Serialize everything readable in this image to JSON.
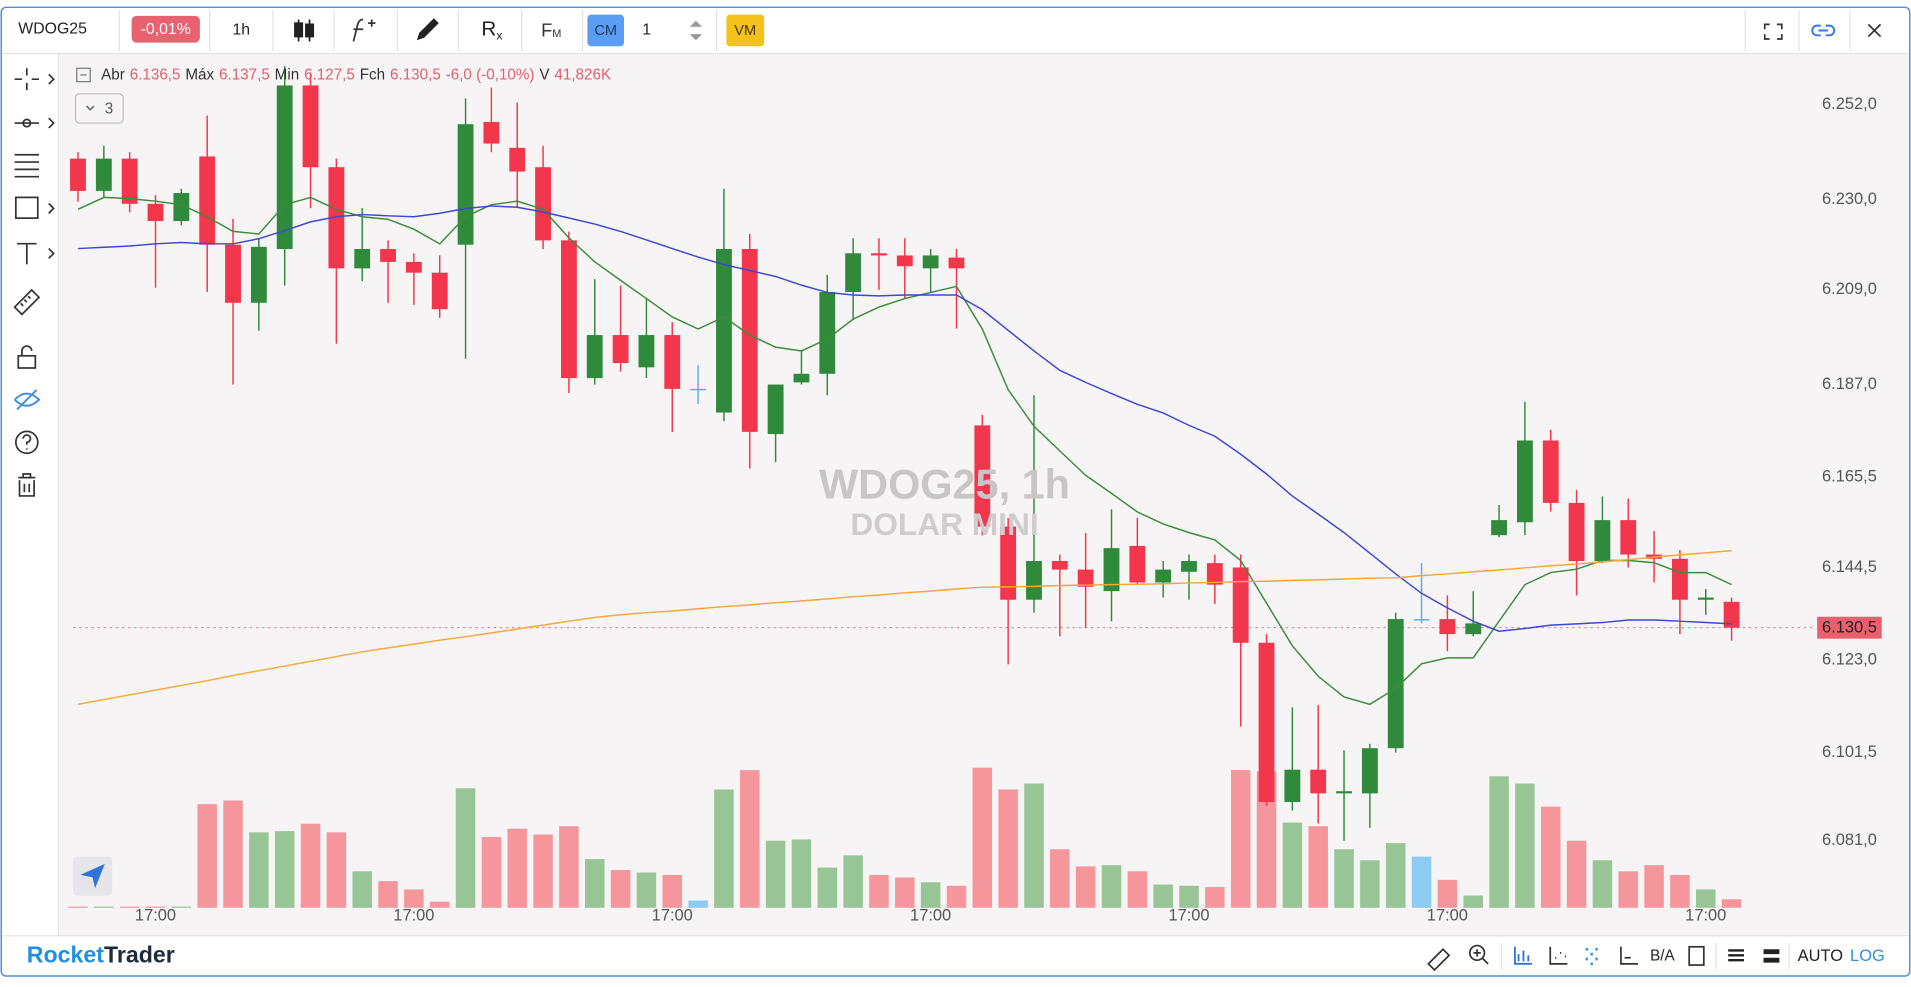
{
  "toolbar": {
    "symbol": "WDOG25",
    "change": "-0,01%",
    "timeframe": "1h",
    "indicator_r": "R",
    "indicator_x": "x",
    "indicator_f": "F",
    "indicator_m": "M",
    "cm": "CM",
    "count": "1",
    "vm": "VM"
  },
  "legend": {
    "open_label": "Abr",
    "open": "6.136,5",
    "high_label": "Máx",
    "high": "6.137,5",
    "low_label": "Min",
    "low": "6.127,5",
    "close_label": "Fch",
    "close": "6.130,5",
    "change": "-6,0 (-0,10%)",
    "volume_label": "V",
    "volume": "41,826K",
    "indicators": "3"
  },
  "watermark": {
    "title": "WDOG25, 1h",
    "subtitle": "DOLAR MINI"
  },
  "footer": {
    "brand_a": "Rocket",
    "brand_b": "Trader",
    "bid_ask": "B/A",
    "auto": "AUTO",
    "log": "LOG"
  },
  "chart_data": {
    "type": "candlestick",
    "categories": [
      null,
      null,
      null,
      "17:00",
      null,
      null,
      null,
      null,
      null,
      null,
      null,
      null,
      null,
      "17:00",
      null,
      null,
      null,
      null,
      null,
      null,
      null,
      null,
      null,
      "17:00",
      null,
      null,
      null,
      null,
      null,
      null,
      null,
      null,
      null,
      "17:00",
      null,
      null,
      null,
      null,
      null,
      null,
      null,
      null,
      null,
      "17:00",
      null,
      null,
      null,
      null,
      null,
      null,
      null,
      null,
      null,
      "17:00",
      null,
      null,
      null,
      null,
      null,
      null,
      null,
      null,
      null,
      "17:00",
      null
    ],
    "open": [
      6239.5,
      6232,
      6239.5,
      6229,
      6225,
      6240,
      6219.5,
      6206,
      6218.5,
      6256.5,
      6237.5,
      6214,
      6218.5,
      6215.5,
      6213,
      6219.5,
      6248,
      6242,
      6237.5,
      6220.5,
      6188.5,
      6198.5,
      6191,
      6198.5,
      6186,
      6180.5,
      6218.5,
      6175.5,
      6187.5,
      6189.5,
      6208.5,
      6217.5,
      6217,
      6214,
      6216.5,
      6177.5,
      6154,
      6137,
      6146,
      6144,
      6139,
      6149.5,
      6141,
      6143.5,
      6145.5,
      6144.5,
      6127,
      6090,
      6097.5,
      6092,
      6092,
      6102.5,
      6132.5,
      6132.5,
      6129,
      6152,
      6155,
      6174,
      6159.5,
      6146,
      6155.5,
      6147.5,
      6146.5,
      6137,
      6136.5
    ],
    "high": [
      6241,
      6242.5,
      6241,
      6231,
      6232.5,
      6249.5,
      6225.5,
      6221,
      6261,
      6259.5,
      6239.5,
      6228,
      6220.5,
      6217.5,
      6217,
      6253.5,
      6256,
      6252.5,
      6242.5,
      6222.5,
      6211.5,
      6210,
      6207,
      6201.5,
      6191.5,
      6232.5,
      6222,
      6187,
      6195,
      6212.5,
      6221,
      6221,
      6221,
      6218.5,
      6218.5,
      6180,
      6156,
      6184.5,
      6147.5,
      6152.5,
      6158,
      6156,
      6146,
      6147.5,
      6147.5,
      6147.5,
      6129,
      6112,
      6112.5,
      6102,
      6103.5,
      6134,
      6145.5,
      6138,
      6139,
      6159,
      6183,
      6176.5,
      6162.5,
      6161,
      6160.5,
      6153,
      6148.5,
      6139.5,
      6137.5
    ],
    "low": [
      6229.5,
      6230.5,
      6227,
      6209.5,
      6224,
      6208.5,
      6187,
      6199.5,
      6210,
      6228,
      6196.5,
      6211,
      6206,
      6205.5,
      6202.5,
      6193,
      6241,
      6228,
      6218.5,
      6185,
      6187,
      6190,
      6188.5,
      6176,
      6182.5,
      6178.5,
      6167.5,
      6169,
      6187,
      6184.5,
      6202,
      6209,
      6207,
      6208.5,
      6200,
      6152,
      6122,
      6134,
      6128.5,
      6130.5,
      6132,
      6140.5,
      6137.5,
      6137,
      6136,
      6107.5,
      6089,
      6088,
      6085,
      6081,
      6084,
      6101.5,
      6131.5,
      6125,
      6128.5,
      6151.5,
      6152,
      6157.5,
      6138,
      6145.5,
      6144.5,
      6141,
      6129,
      6133.5,
      6127.5
    ],
    "close": [
      6232,
      6239.5,
      6229,
      6225,
      6231.5,
      6219.5,
      6206,
      6219,
      6256.5,
      6237.5,
      6214,
      6218.5,
      6215.5,
      6213,
      6204.5,
      6247.5,
      6243,
      6236.5,
      6220.5,
      6188.5,
      6198.5,
      6192,
      6198.5,
      6186,
      6186,
      6218.5,
      6176,
      6187,
      6189.5,
      6208.5,
      6217.5,
      6217,
      6214.5,
      6217,
      6214,
      6154,
      6137,
      6146,
      6144,
      6140,
      6149,
      6141,
      6144,
      6146,
      6140.5,
      6127,
      6090,
      6097.5,
      6092,
      6092.5,
      6102.5,
      6132.5,
      6132.5,
      6129,
      6131.5,
      6155.5,
      6174,
      6159.5,
      6146,
      6155.5,
      6147.5,
      6146.5,
      6137,
      6137.5,
      6130.5
    ],
    "volume": [
      6000,
      6000,
      6000,
      6000,
      6000,
      508000,
      526000,
      370000,
      376000,
      412000,
      370000,
      179000,
      131000,
      90000,
      30000,
      586000,
      347000,
      388000,
      359000,
      400000,
      239000,
      185000,
      173000,
      161000,
      36000,
      580000,
      675000,
      329000,
      335000,
      197000,
      257000,
      161000,
      149000,
      125000,
      108000,
      687000,
      580000,
      609000,
      287000,
      203000,
      209000,
      179000,
      114000,
      108000,
      102000,
      675000,
      669000,
      418000,
      400000,
      287000,
      233000,
      317000,
      251000,
      137000,
      60000,
      645000,
      609000,
      496000,
      329000,
      233000,
      179000,
      209000,
      161000,
      90000,
      41826
    ],
    "up_color": "#2f8a3b",
    "down_color": "#f2364b",
    "flat_color": "#5aaee8",
    "volume_up_color": "#97c596",
    "volume_down_color": "#f5969d",
    "volume_flat_color": "#8ecbf2",
    "lines": [
      {
        "color": "#3b8c3b",
        "values": [
          6227.7,
          6230.5,
          6230.2,
          6229.6,
          6228.8,
          6226,
          6222.6,
          6222,
          6228.8,
          6230.5,
          6227.7,
          6226,
          6225.4,
          6223.1,
          6219.7,
          6226,
          6228.8,
          6229.6,
          6227.7,
          6221.1,
          6215.5,
          6211.2,
          6207,
          6202.7,
          6199.9,
          6202.7,
          6198.5,
          6195.7,
          6194.8,
          6197.6,
          6202.2,
          6205,
          6207,
          6208.4,
          6209.8,
          6199.9,
          6185.8,
          6177.3,
          6171.6,
          6165.9,
          6161.7,
          6157.4,
          6154.6,
          6152.6,
          6150.9,
          6146.1,
          6136.2,
          6126.3,
          6119.2,
          6114.4,
          6112.7,
          6116.4,
          6122.1,
          6123.5,
          6123.5,
          6132,
          6140.5,
          6143.3,
          6144.1,
          6146.1,
          6146.1,
          6145.6,
          6143.3,
          6143.3,
          6140.5
        ]
      },
      {
        "color": "#3d47d4",
        "values": [
          6218.6,
          6218.9,
          6219.2,
          6219.7,
          6220,
          6219.7,
          6219.7,
          6220.9,
          6222.8,
          6224.8,
          6226,
          6226.5,
          6226.2,
          6226,
          6226.8,
          6227.9,
          6228.5,
          6228.2,
          6227.1,
          6225.7,
          6224.3,
          6222.6,
          6220.6,
          6218.6,
          6216.6,
          6214.9,
          6213.5,
          6212.1,
          6210.1,
          6208.4,
          6207.8,
          6207.6,
          6207.8,
          6207.8,
          6207.8,
          6204.4,
          6199.6,
          6194.8,
          6190.3,
          6187.5,
          6184.9,
          6182.4,
          6180.4,
          6177.5,
          6175,
          6170.8,
          6166.2,
          6161.1,
          6156.9,
          6152.6,
          6147.8,
          6143,
          6138.5,
          6135.1,
          6132,
          6129.7,
          6130.3,
          6131.1,
          6131.4,
          6131.7,
          6132.3,
          6132.3,
          6132,
          6131.7,
          6131.4
        ]
      },
      {
        "color": "#f5a73a",
        "values": [
          6112.7,
          6113.8,
          6114.9,
          6116,
          6117.1,
          6118.2,
          6119.4,
          6120.5,
          6121.6,
          6122.7,
          6123.8,
          6124.9,
          6125.8,
          6126.7,
          6127.6,
          6128.4,
          6129.3,
          6130.2,
          6131.1,
          6132,
          6132.9,
          6133.5,
          6134,
          6134.4,
          6134.9,
          6135.4,
          6135.8,
          6136.3,
          6136.7,
          6137.2,
          6137.7,
          6138.1,
          6138.6,
          6139,
          6139.5,
          6139.9,
          6140,
          6140.1,
          6140.3,
          6140.4,
          6140.5,
          6140.6,
          6140.7,
          6140.9,
          6141,
          6141.2,
          6141.3,
          6141.5,
          6141.6,
          6141.8,
          6142,
          6142.1,
          6142.6,
          6143,
          6143.5,
          6143.9,
          6144.4,
          6144.9,
          6145.3,
          6145.8,
          6146.3,
          6146.9,
          6147.4,
          6147.9,
          6148.4
        ]
      }
    ],
    "last_price": {
      "value": 6130.5,
      "label": "6.130,5",
      "color": "#e8606e"
    },
    "ylim": [
      6058.9,
      6263.9
    ],
    "yticks": [
      {
        "value": 6252,
        "label": "6.252,0"
      },
      {
        "value": 6230,
        "label": "6.230,0"
      },
      {
        "value": 6209,
        "label": "6.209,0"
      },
      {
        "value": 6187,
        "label": "6.187,0"
      },
      {
        "value": 6165.5,
        "label": "6.165,5"
      },
      {
        "value": 6144.5,
        "label": "6.144,5"
      },
      {
        "value": 6123,
        "label": "6.123,0"
      },
      {
        "value": 6101.5,
        "label": "6.101,5"
      },
      {
        "value": 6081,
        "label": "6.081,0"
      }
    ],
    "grid": false
  }
}
